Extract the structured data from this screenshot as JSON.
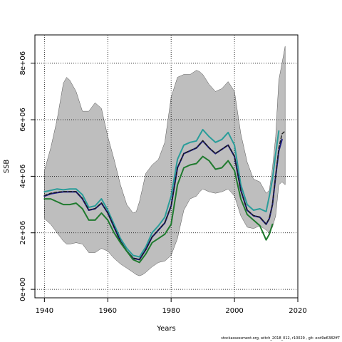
{
  "chart_data": {
    "type": "line",
    "title": "",
    "xlabel": "Years",
    "ylabel": "SSB",
    "xlim": [
      1937,
      2020
    ],
    "ylim": [
      -300000,
      9000000
    ],
    "grid": true,
    "x_ticks": [
      {
        "value": 1940,
        "label": "1940"
      },
      {
        "value": 1960,
        "label": "1960"
      },
      {
        "value": 1980,
        "label": "1980"
      },
      {
        "value": 2000,
        "label": "2000"
      },
      {
        "value": 2020,
        "label": "2020"
      }
    ],
    "y_ticks": [
      {
        "value": 0,
        "label": "0e+00"
      },
      {
        "value": 2000000,
        "label": "2e+06"
      },
      {
        "value": 4000000,
        "label": "4e+06"
      },
      {
        "value": 6000000,
        "label": "6e+06"
      },
      {
        "value": 8000000,
        "label": "8e+06"
      }
    ],
    "uncertainty_band": {
      "color": "#bebebe",
      "x": [
        1940,
        1942,
        1944,
        1946,
        1947,
        1948,
        1950,
        1952,
        1954,
        1956,
        1958,
        1960,
        1962,
        1964,
        1966,
        1968,
        1969,
        1970,
        1971,
        1972,
        1974,
        1976,
        1978,
        1980,
        1982,
        1983,
        1984,
        1986,
        1988,
        1989,
        1990,
        1992,
        1994,
        1996,
        1998,
        2000,
        2002,
        2004,
        2006,
        2008,
        2010,
        2011,
        2012,
        2013,
        2014,
        2015,
        2016
      ],
      "upper": [
        4200000,
        5000000,
        6000000,
        7300000,
        7500000,
        7400000,
        7000000,
        6300000,
        6300000,
        6600000,
        6400000,
        5400000,
        4600000,
        3700000,
        3000000,
        2700000,
        2750000,
        3100000,
        3600000,
        4100000,
        4400000,
        4600000,
        5200000,
        6800000,
        7500000,
        7550000,
        7600000,
        7600000,
        7750000,
        7700000,
        7600000,
        7250000,
        7000000,
        7100000,
        7350000,
        7000000,
        5500000,
        4500000,
        3900000,
        3800000,
        3400000,
        3500000,
        4300000,
        5400000,
        7400000,
        8000000,
        8600000
      ],
      "lower": [
        2500000,
        2300000,
        2000000,
        1700000,
        1600000,
        1600000,
        1650000,
        1600000,
        1300000,
        1300000,
        1450000,
        1350000,
        1100000,
        900000,
        750000,
        600000,
        520000,
        480000,
        520000,
        600000,
        800000,
        950000,
        1000000,
        1200000,
        1800000,
        2300000,
        2800000,
        3200000,
        3300000,
        3450000,
        3550000,
        3450000,
        3400000,
        3450000,
        3550000,
        3300000,
        2600000,
        2200000,
        2150000,
        2250000,
        2100000,
        2000000,
        2200000,
        2600000,
        3700000,
        3800000,
        3700000
      ]
    },
    "series": [
      {
        "color": "#2a9d9a",
        "width": 2,
        "x": [
          1940,
          1942,
          1944,
          1946,
          1948,
          1950,
          1952,
          1954,
          1956,
          1958,
          1960,
          1962,
          1964,
          1966,
          1968,
          1970,
          1972,
          1974,
          1976,
          1978,
          1980,
          1982,
          1984,
          1986,
          1988,
          1990,
          1992,
          1994,
          1996,
          1998,
          2000,
          2002,
          2004,
          2006,
          2008,
          2010,
          2011,
          2012,
          2013,
          2014
        ],
        "values": [
          3450000,
          3500000,
          3550000,
          3520000,
          3550000,
          3550000,
          3350000,
          2900000,
          2950000,
          3200000,
          2800000,
          2300000,
          1800000,
          1450000,
          1200000,
          1150000,
          1500000,
          2000000,
          2250000,
          2550000,
          3300000,
          4600000,
          5100000,
          5200000,
          5250000,
          5650000,
          5400000,
          5200000,
          5300000,
          5550000,
          5100000,
          3700000,
          3000000,
          2800000,
          2850000,
          2750000,
          3300000,
          3900000,
          4800000,
          5600000
        ]
      },
      {
        "color": "#1a1a80",
        "width": 2,
        "x": [
          1940,
          1942,
          1944,
          1946,
          1948,
          1950,
          1952,
          1954,
          1956,
          1958,
          1960,
          1962,
          1964,
          1966,
          1968,
          1970,
          1972,
          1974,
          1976,
          1978,
          1980,
          1982,
          1984,
          1986,
          1988,
          1990,
          1992,
          1994,
          1996,
          1998,
          2000,
          2002,
          2004,
          2006,
          2008,
          2010,
          2011,
          2012,
          2013,
          2014,
          2015
        ],
        "values": [
          3300000,
          3380000,
          3420000,
          3450000,
          3450000,
          3450000,
          3200000,
          2800000,
          2850000,
          3050000,
          2700000,
          2200000,
          1700000,
          1350000,
          1100000,
          1050000,
          1400000,
          1850000,
          2100000,
          2350000,
          2950000,
          4300000,
          4800000,
          4900000,
          5000000,
          5250000,
          5000000,
          4800000,
          4950000,
          5100000,
          4700000,
          3500000,
          2800000,
          2600000,
          2550000,
          2300000,
          2500000,
          3000000,
          4000000,
          4900000,
          5300000
        ]
      },
      {
        "color": "#1a1a1a",
        "width": 1.4,
        "dash": "4,3",
        "x": [
          1940,
          1942,
          1944,
          1946,
          1948,
          1950,
          1952,
          1954,
          1956,
          1958,
          1960,
          1962,
          1964,
          1966,
          1968,
          1970,
          1972,
          1974,
          1976,
          1978,
          1980,
          1982,
          1984,
          1986,
          1988,
          1990,
          1992,
          1994,
          1996,
          1998,
          2000,
          2002,
          2004,
          2006,
          2008,
          2010,
          2011,
          2012,
          2013,
          2014,
          2015,
          2016
        ],
        "values": [
          3320000,
          3400000,
          3440000,
          3460000,
          3460000,
          3460000,
          3220000,
          2810000,
          2860000,
          3060000,
          2710000,
          2210000,
          1710000,
          1360000,
          1110000,
          1060000,
          1410000,
          1860000,
          2110000,
          2360000,
          2960000,
          4310000,
          4810000,
          4910000,
          5010000,
          5260000,
          5010000,
          4810000,
          4960000,
          5110000,
          4710000,
          3510000,
          2810000,
          2610000,
          2560000,
          2310000,
          2510000,
          3010000,
          4010000,
          5000000,
          5500000,
          5600000
        ]
      },
      {
        "color": "#1f7a2e",
        "width": 2,
        "x": [
          1940,
          1942,
          1944,
          1946,
          1948,
          1950,
          1952,
          1954,
          1956,
          1958,
          1960,
          1962,
          1964,
          1966,
          1968,
          1970,
          1972,
          1974,
          1976,
          1978,
          1980,
          1982,
          1984,
          1986,
          1988,
          1990,
          1992,
          1994,
          1996,
          1998,
          2000,
          2002,
          2004,
          2006,
          2008,
          2009,
          2010,
          2011,
          2012
        ],
        "values": [
          3200000,
          3200000,
          3100000,
          3000000,
          3000000,
          3050000,
          2850000,
          2450000,
          2450000,
          2700000,
          2450000,
          2000000,
          1650000,
          1350000,
          1050000,
          950000,
          1250000,
          1650000,
          1800000,
          1950000,
          2300000,
          3700000,
          4300000,
          4400000,
          4450000,
          4700000,
          4550000,
          4250000,
          4300000,
          4550000,
          4200000,
          3200000,
          2650000,
          2450000,
          2250000,
          2000000,
          1750000,
          1950000,
          2300000
        ]
      }
    ]
  },
  "footer": {
    "text": "stockassessment.org, witch_2018_012, r10029 , git: ecd9e6382ff7"
  }
}
